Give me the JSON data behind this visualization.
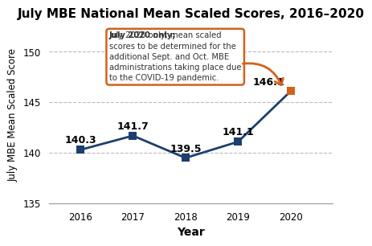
{
  "title": "July MBE National Mean Scaled Scores, 2016–2020",
  "xlabel": "Year",
  "ylabel": "July MBE Mean Scaled Score",
  "years": [
    2016,
    2017,
    2018,
    2019,
    2020
  ],
  "scores": [
    140.3,
    141.7,
    139.5,
    141.1,
    146.1
  ],
  "ylim": [
    135,
    152.5
  ],
  "yticks": [
    135,
    140,
    145,
    150
  ],
  "line_color": "#1b3f6e",
  "marker_color_main": "#1b3f6e",
  "marker_color_2020": "#d4611a",
  "marker_size": 7,
  "annotation_box_edge_color": "#d4611a",
  "annotation_bold_text": "July 2020 only;",
  "annotation_rest_text": " mean scaled\nscores to be determined for the\nadditional Sept. and Oct. MBE\nadministrations taking place due\nto the COVID-19 pandemic.",
  "arrow_color": "#d4611a",
  "background_color": "#ffffff",
  "grid_color": "#bbbbbb",
  "title_fontsize": 11,
  "label_fontsize": 8.5,
  "tick_fontsize": 8.5,
  "data_label_fontsize": 9
}
